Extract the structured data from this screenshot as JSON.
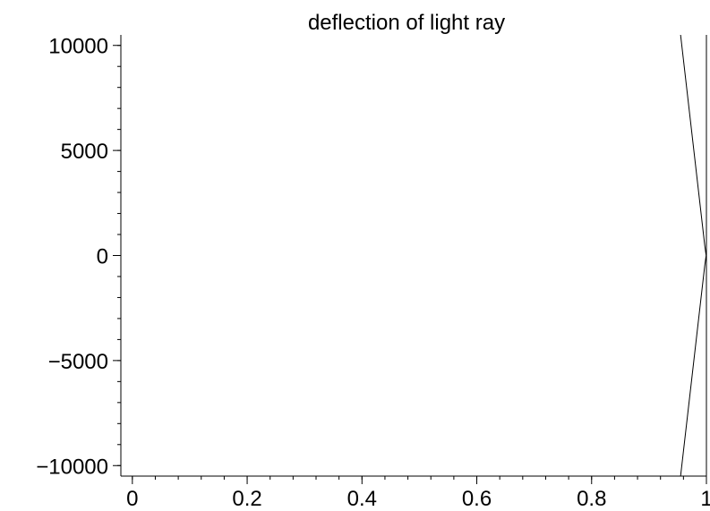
{
  "chart_data": {
    "type": "line",
    "title": "deflection of light ray",
    "xlabel": "",
    "ylabel": "",
    "xlim": [
      -0.02,
      1.0
    ],
    "ylim": [
      -10500,
      10500
    ],
    "x_ticks": [
      0,
      0.2,
      0.4,
      0.6,
      0.8,
      1
    ],
    "x_tick_labels": [
      "0",
      "0.2",
      "0.4",
      "0.6",
      "0.8",
      "1"
    ],
    "x_minor_step": 0.04,
    "y_ticks": [
      -10000,
      -5000,
      0,
      5000,
      10000
    ],
    "y_tick_labels": [
      "−10000",
      "−5000",
      "0",
      "5000",
      "10000"
    ],
    "y_minor_step": 1000,
    "grid": false,
    "legend": "none",
    "line_color": "#000000",
    "series": [
      {
        "segments": [
          [
            [
              0.955,
              10500
            ],
            [
              0.997,
              500
            ],
            [
              0.9995,
              0
            ]
          ],
          [
            [
              0.9995,
              0
            ],
            [
              0.997,
              -500
            ],
            [
              0.955,
              -10500
            ]
          ]
        ]
      }
    ]
  }
}
